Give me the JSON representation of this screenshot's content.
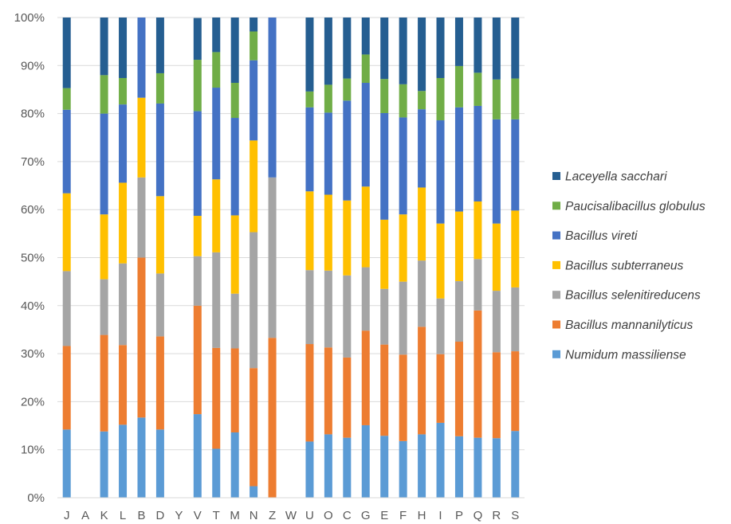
{
  "chart_data": {
    "type": "bar",
    "stacked": true,
    "percent": true,
    "title": "",
    "xlabel": "",
    "ylabel": "",
    "ylim": [
      0,
      100
    ],
    "yticks": [
      "0%",
      "10%",
      "20%",
      "30%",
      "40%",
      "50%",
      "60%",
      "70%",
      "80%",
      "90%",
      "100%"
    ],
    "grid": true,
    "legend_position": "right",
    "categories": [
      "J",
      "A",
      "K",
      "L",
      "B",
      "D",
      "Y",
      "V",
      "T",
      "M",
      "N",
      "Z",
      "W",
      "U",
      "O",
      "C",
      "G",
      "E",
      "F",
      "H",
      "I",
      "P",
      "Q",
      "R",
      "S"
    ],
    "series": [
      {
        "name": "Numidum massiliense",
        "color": "#5B9BD5",
        "values": [
          14.2,
          0,
          13.8,
          15.2,
          16.7,
          14.2,
          0,
          17.4,
          10.2,
          13.6,
          2.4,
          0,
          0,
          11.7,
          13.2,
          12.5,
          15.1,
          12.9,
          11.8,
          13.2,
          15.6,
          12.8,
          12.5,
          12.4,
          13.9
        ]
      },
      {
        "name": "Bacillus mannanilyticus",
        "color": "#ED7D31",
        "values": [
          17.4,
          0,
          20.1,
          16.6,
          33.3,
          19.4,
          0,
          22.6,
          21.0,
          17.5,
          24.6,
          33.3,
          0,
          20.3,
          18.1,
          16.7,
          19.7,
          19.0,
          18.0,
          22.4,
          14.3,
          19.7,
          26.5,
          17.9,
          16.6
        ]
      },
      {
        "name": "Bacillus selenitireducens",
        "color": "#A5A5A5",
        "values": [
          15.6,
          0,
          11.6,
          17.0,
          16.7,
          13.1,
          0,
          10.3,
          19.9,
          11.4,
          28.3,
          33.4,
          0,
          15.4,
          16.0,
          17.1,
          13.2,
          11.6,
          15.2,
          13.8,
          11.6,
          12.6,
          10.7,
          12.8,
          13.3
        ]
      },
      {
        "name": "Bacillus subterraneus",
        "color": "#FFC000",
        "values": [
          16.2,
          0,
          13.5,
          16.8,
          16.6,
          16.1,
          0,
          8.4,
          15.2,
          16.3,
          19.1,
          0,
          0,
          16.4,
          15.8,
          15.6,
          16.8,
          14.4,
          14.0,
          15.2,
          15.6,
          14.5,
          12.0,
          14.0,
          16.0
        ]
      },
      {
        "name": "Bacillus vireti",
        "color": "#4472C4",
        "values": [
          17.4,
          0,
          21.0,
          16.3,
          16.7,
          19.3,
          0,
          21.8,
          19.1,
          20.3,
          16.7,
          33.3,
          0,
          17.5,
          17.1,
          20.8,
          21.6,
          22.2,
          20.2,
          16.3,
          21.5,
          21.7,
          19.9,
          21.7,
          19.0
        ]
      },
      {
        "name": "Paucisalibacillus globulus",
        "color": "#70AD47",
        "values": [
          4.5,
          0,
          8.0,
          5.5,
          0,
          6.3,
          0,
          10.7,
          7.4,
          7.3,
          6.0,
          0,
          0,
          3.3,
          5.8,
          4.6,
          5.9,
          7.1,
          6.9,
          3.8,
          8.8,
          8.6,
          6.9,
          8.3,
          8.5
        ]
      },
      {
        "name": "Laceyella sacchari",
        "color": "#255E91",
        "values": [
          14.7,
          0,
          12.0,
          12.6,
          0,
          11.6,
          0,
          8.7,
          7.2,
          13.6,
          2.9,
          0,
          0,
          15.4,
          14.0,
          12.7,
          7.7,
          12.8,
          13.9,
          15.3,
          12.6,
          10.1,
          11.5,
          12.9,
          12.7
        ]
      }
    ]
  }
}
